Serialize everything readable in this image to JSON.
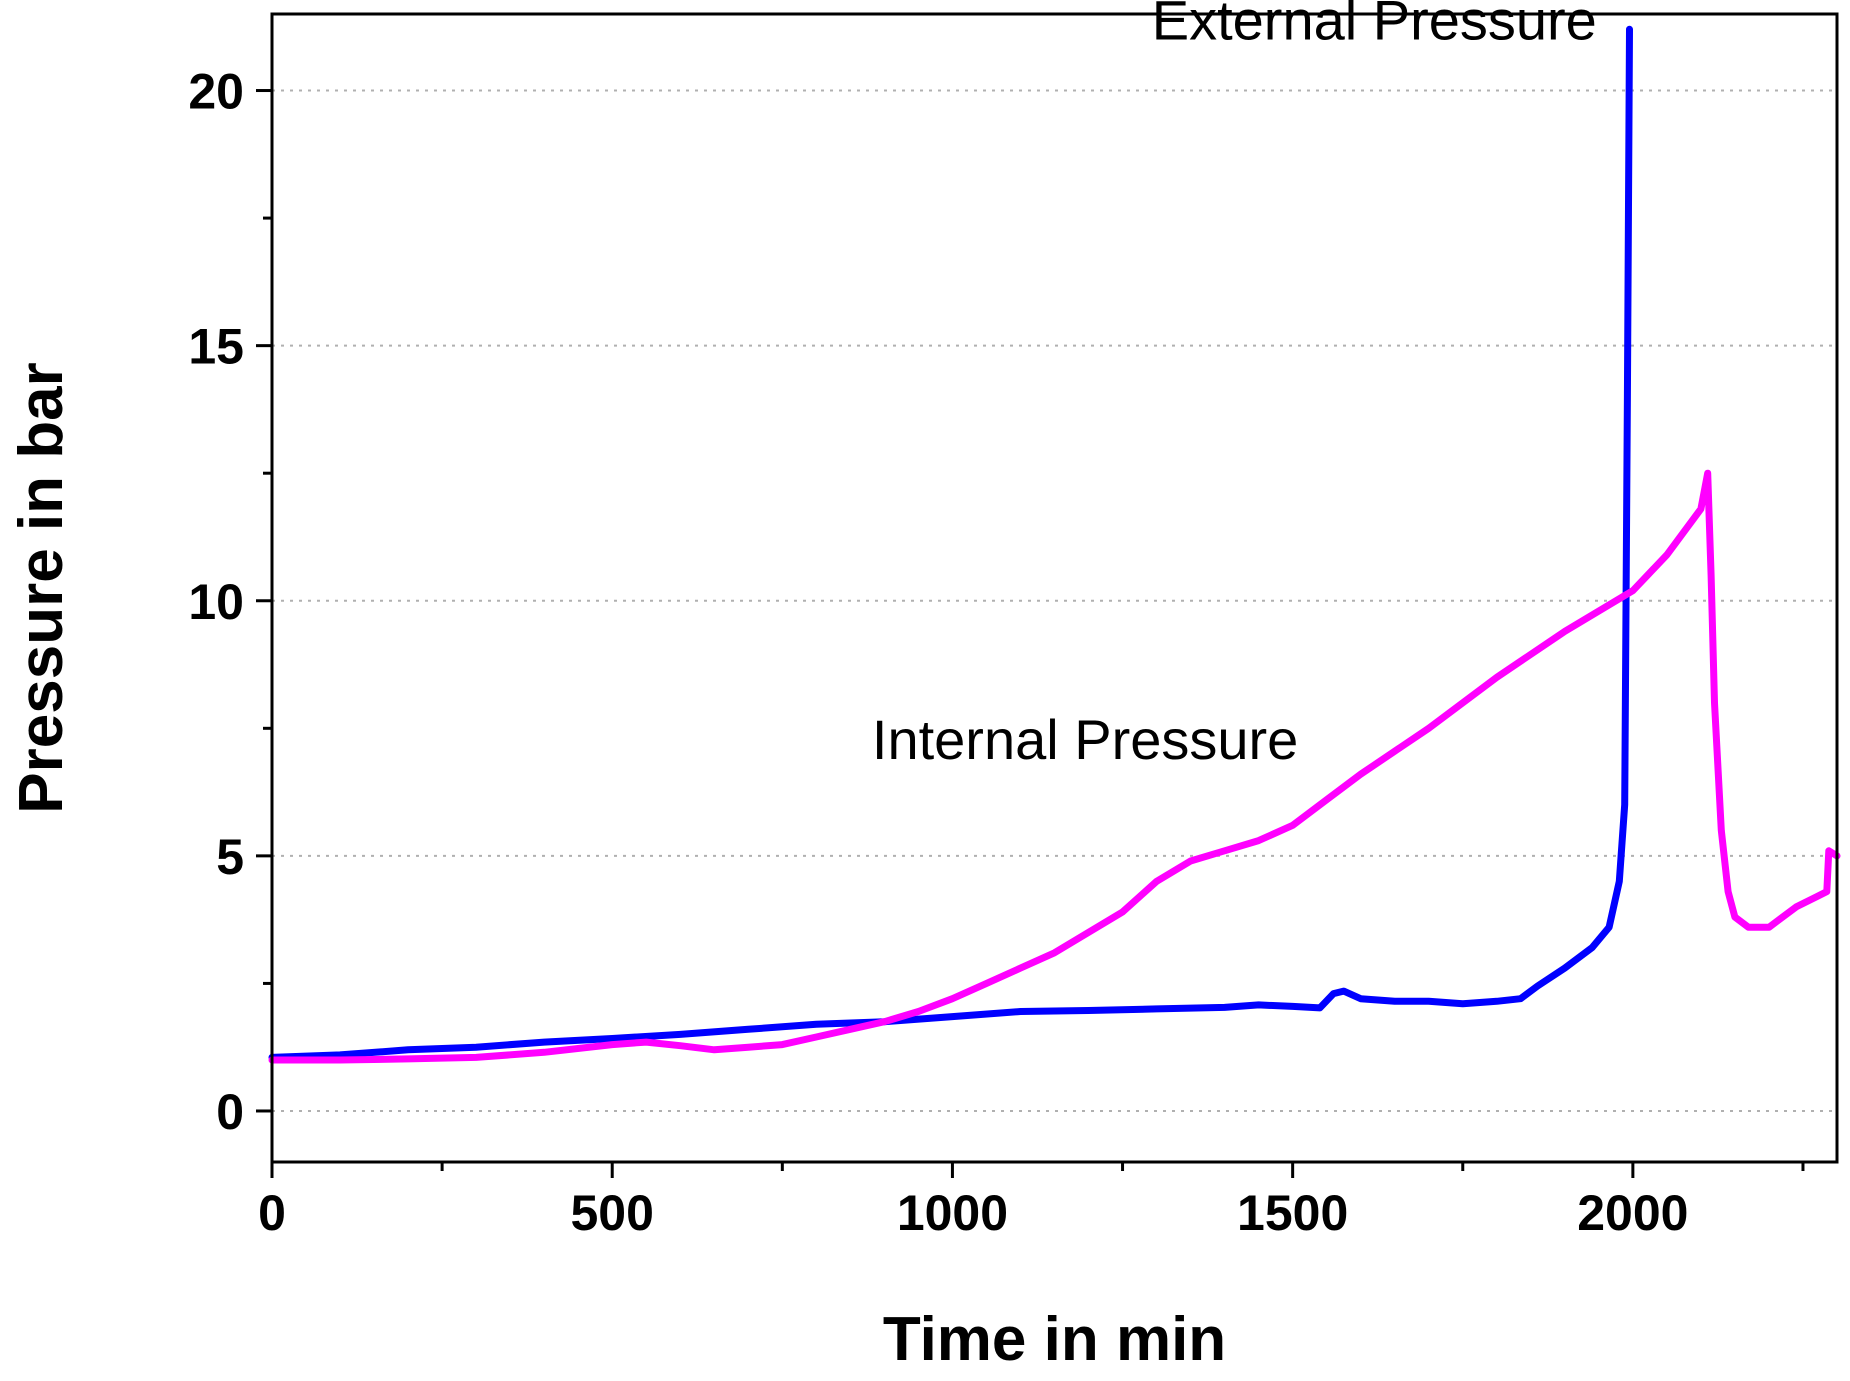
{
  "chart_data": {
    "type": "line",
    "title": "",
    "xlabel": "Time in min",
    "ylabel": "Pressure in bar",
    "xlim": [
      0,
      2300
    ],
    "ylim": [
      -1,
      21.5
    ],
    "xticks": [
      0,
      500,
      1000,
      1500,
      2000
    ],
    "yticks": [
      0,
      5,
      10,
      15,
      20
    ],
    "x_minor_ticks": [
      250,
      750,
      1250,
      1750,
      2250
    ],
    "y_minor_ticks": [
      2.5,
      7.5,
      12.5,
      17.5
    ],
    "grid": "horizontal dotted at major y ticks",
    "series": [
      {
        "name": "External Pressure",
        "color": "#0000ff",
        "x": [
          0,
          100,
          200,
          300,
          400,
          500,
          600,
          700,
          800,
          900,
          1000,
          1100,
          1200,
          1300,
          1400,
          1450,
          1500,
          1540,
          1560,
          1575,
          1600,
          1650,
          1700,
          1750,
          1800,
          1835,
          1860,
          1900,
          1940,
          1965,
          1980,
          1988,
          1992,
          1995
        ],
        "y": [
          1.05,
          1.1,
          1.2,
          1.25,
          1.35,
          1.42,
          1.5,
          1.6,
          1.7,
          1.75,
          1.85,
          1.95,
          1.97,
          2.0,
          2.03,
          2.08,
          2.05,
          2.02,
          2.3,
          2.35,
          2.2,
          2.15,
          2.15,
          2.1,
          2.15,
          2.2,
          2.45,
          2.8,
          3.2,
          3.6,
          4.5,
          6,
          14,
          21.2
        ]
      },
      {
        "name": "Internal Pressure",
        "color": "#ff00ff",
        "x": [
          0,
          100,
          200,
          300,
          400,
          500,
          550,
          600,
          650,
          700,
          750,
          800,
          850,
          900,
          950,
          1000,
          1050,
          1100,
          1150,
          1200,
          1250,
          1300,
          1350,
          1400,
          1450,
          1500,
          1550,
          1600,
          1700,
          1800,
          1900,
          2000,
          2050,
          2100,
          2110,
          2115,
          2120,
          2130,
          2140,
          2150,
          2170,
          2200,
          2220,
          2240,
          2270,
          2285,
          2288,
          2300
        ],
        "y": [
          1.0,
          1.0,
          1.02,
          1.05,
          1.15,
          1.3,
          1.35,
          1.28,
          1.2,
          1.25,
          1.3,
          1.45,
          1.6,
          1.75,
          1.95,
          2.2,
          2.5,
          2.8,
          3.1,
          3.5,
          3.9,
          4.5,
          4.9,
          5.1,
          5.3,
          5.6,
          6.1,
          6.6,
          7.5,
          8.5,
          9.4,
          10.2,
          10.9,
          11.8,
          12.5,
          10.5,
          8.0,
          5.5,
          4.3,
          3.8,
          3.6,
          3.6,
          3.8,
          4.0,
          4.2,
          4.3,
          5.1,
          5.0
        ]
      }
    ],
    "annotations": [
      {
        "text": "External Pressure",
        "x": 1620,
        "y": 21.0
      },
      {
        "text": "Internal Pressure",
        "x": 1195,
        "y": 6.9
      }
    ]
  }
}
